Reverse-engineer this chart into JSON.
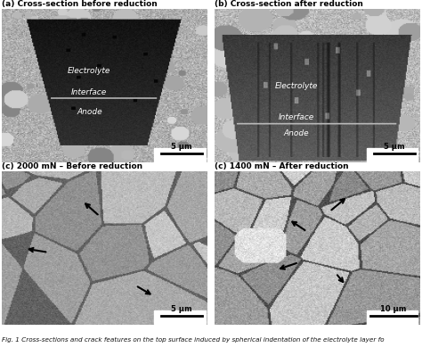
{
  "title_a": "(a) Cross-section before reduction",
  "title_b": "(b) Cross-section after reduction",
  "title_c": "(c) 2000 mN – Before reduction",
  "title_d": "(c) 1400 mN – After reduction",
  "caption": "Fig. 1 Cross-sections and crack features on the top surface induced by spherical indentation of the electrolyte layer fo",
  "scale_bar_a": "5 μm",
  "scale_bar_b": "5 μm",
  "scale_bar_c": "5 μm",
  "scale_bar_d": "10 μm",
  "labels_a": [
    "Electrolyte",
    "Interface",
    "Anode"
  ],
  "labels_b": [
    "Electrolyte",
    "Interface",
    "Anode"
  ],
  "bg_color": "#ffffff",
  "fig_width": 4.74,
  "fig_height": 4.08,
  "dpi": 100
}
